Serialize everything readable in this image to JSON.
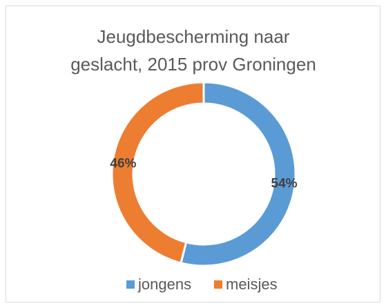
{
  "chart_data": {
    "type": "donut",
    "title": [
      "Jeugdbescherming naar",
      "geslacht, 2015 prov Groningen"
    ],
    "categories": [
      "jongens",
      "meisjes"
    ],
    "values": [
      54,
      46
    ],
    "value_labels": [
      "54%",
      "46%"
    ],
    "colors": [
      "#5b9bd5",
      "#ed7d31"
    ],
    "legend": "bottom"
  }
}
